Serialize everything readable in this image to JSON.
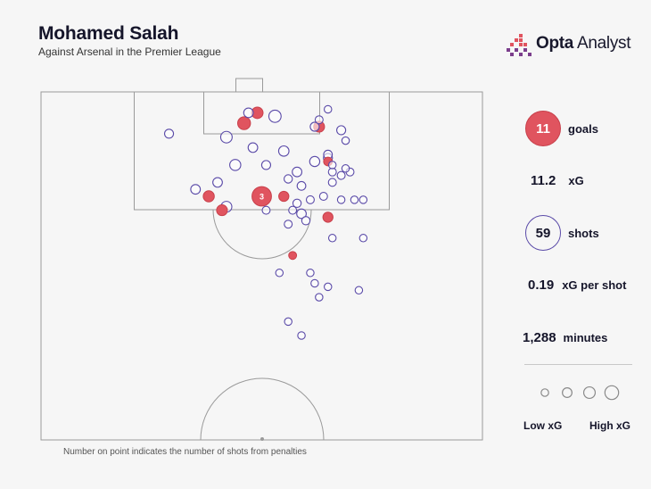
{
  "header": {
    "title": "Mohamed Salah",
    "subtitle": "Against Arsenal in the Premier League"
  },
  "brand": {
    "bold": "Opta",
    "light": " Analyst"
  },
  "stats": {
    "goals_value": "11",
    "goals_label": "goals",
    "xg_value": "11.2",
    "xg_label": "xG",
    "shots_value": "59",
    "shots_label": "shots",
    "xg_per_shot_value": "0.19",
    "xg_per_shot_label": "xG per shot",
    "minutes_value": "1,288",
    "minutes_label": "minutes"
  },
  "legend": {
    "low": "Low xG",
    "high": "High xG"
  },
  "footnote": "Number on point indicates the number of shots from penalties",
  "colors": {
    "goal_fill": "#e0545f",
    "shot_stroke": "#5a4aa8",
    "line": "#9a9a9a"
  },
  "chart_data": {
    "type": "scatter",
    "title": "Mohamed Salah",
    "subtitle": "Against Arsenal in the Premier League",
    "note": "Number on point indicates the number of shots from penalties",
    "size_encoding": "xG",
    "categories": [
      "goal",
      "shot"
    ],
    "penalty_label": "3",
    "points": [
      {
        "x": 46,
        "y": 9,
        "xg": 0.25,
        "goal": true
      },
      {
        "x": 49,
        "y": 6,
        "xg": 0.18,
        "goal": true
      },
      {
        "x": 53,
        "y": 7,
        "xg": 0.22,
        "goal": false
      },
      {
        "x": 47,
        "y": 6,
        "xg": 0.1,
        "goal": false
      },
      {
        "x": 63,
        "y": 10,
        "xg": 0.15,
        "goal": true
      },
      {
        "x": 42,
        "y": 13,
        "xg": 0.18,
        "goal": false
      },
      {
        "x": 29,
        "y": 12,
        "xg": 0.08,
        "goal": false
      },
      {
        "x": 48,
        "y": 16,
        "xg": 0.1,
        "goal": false
      },
      {
        "x": 55,
        "y": 17,
        "xg": 0.13,
        "goal": false
      },
      {
        "x": 44,
        "y": 21,
        "xg": 0.16,
        "goal": false
      },
      {
        "x": 51,
        "y": 21,
        "xg": 0.08,
        "goal": false
      },
      {
        "x": 62,
        "y": 10,
        "xg": 0.08,
        "goal": false
      },
      {
        "x": 58,
        "y": 23,
        "xg": 0.1,
        "goal": false
      },
      {
        "x": 40,
        "y": 26,
        "xg": 0.1,
        "goal": false
      },
      {
        "x": 35,
        "y": 28,
        "xg": 0.1,
        "goal": false
      },
      {
        "x": 38,
        "y": 30,
        "xg": 0.16,
        "goal": true
      },
      {
        "x": 50,
        "y": 30,
        "xg": 0.76,
        "goal": true,
        "penalty_count": 3
      },
      {
        "x": 55,
        "y": 30,
        "xg": 0.12,
        "goal": true
      },
      {
        "x": 42,
        "y": 33,
        "xg": 0.15,
        "goal": false
      },
      {
        "x": 41,
        "y": 34,
        "xg": 0.15,
        "goal": true
      },
      {
        "x": 62,
        "y": 20,
        "xg": 0.12,
        "goal": false
      },
      {
        "x": 68,
        "y": 11,
        "xg": 0.08,
        "goal": false
      },
      {
        "x": 63,
        "y": 8,
        "xg": 0.05,
        "goal": false
      },
      {
        "x": 65,
        "y": 5,
        "xg": 0.04,
        "goal": false
      },
      {
        "x": 69,
        "y": 14,
        "xg": 0.04,
        "goal": false
      },
      {
        "x": 65,
        "y": 18,
        "xg": 0.07,
        "goal": false
      },
      {
        "x": 65,
        "y": 19,
        "xg": 0.08,
        "goal": false
      },
      {
        "x": 65,
        "y": 20,
        "xg": 0.07,
        "goal": true
      },
      {
        "x": 66,
        "y": 21,
        "xg": 0.04,
        "goal": false
      },
      {
        "x": 66,
        "y": 23,
        "xg": 0.05,
        "goal": false
      },
      {
        "x": 68,
        "y": 24,
        "xg": 0.05,
        "goal": false
      },
      {
        "x": 70,
        "y": 23,
        "xg": 0.05,
        "goal": false
      },
      {
        "x": 69,
        "y": 22,
        "xg": 0.04,
        "goal": false
      },
      {
        "x": 66,
        "y": 26,
        "xg": 0.05,
        "goal": false
      },
      {
        "x": 59,
        "y": 27,
        "xg": 0.07,
        "goal": false
      },
      {
        "x": 61,
        "y": 31,
        "xg": 0.05,
        "goal": false
      },
      {
        "x": 64,
        "y": 30,
        "xg": 0.05,
        "goal": false
      },
      {
        "x": 68,
        "y": 31,
        "xg": 0.04,
        "goal": false
      },
      {
        "x": 71,
        "y": 31,
        "xg": 0.04,
        "goal": false
      },
      {
        "x": 73,
        "y": 31,
        "xg": 0.04,
        "goal": false
      },
      {
        "x": 58,
        "y": 32,
        "xg": 0.06,
        "goal": false
      },
      {
        "x": 57,
        "y": 34,
        "xg": 0.05,
        "goal": false
      },
      {
        "x": 59,
        "y": 35,
        "xg": 0.1,
        "goal": false
      },
      {
        "x": 60,
        "y": 37,
        "xg": 0.06,
        "goal": false
      },
      {
        "x": 65,
        "y": 36,
        "xg": 0.12,
        "goal": true
      },
      {
        "x": 56,
        "y": 38,
        "xg": 0.05,
        "goal": false
      },
      {
        "x": 66,
        "y": 42,
        "xg": 0.04,
        "goal": false
      },
      {
        "x": 73,
        "y": 42,
        "xg": 0.04,
        "goal": false
      },
      {
        "x": 57,
        "y": 47,
        "xg": 0.05,
        "goal": true
      },
      {
        "x": 54,
        "y": 52,
        "xg": 0.04,
        "goal": false
      },
      {
        "x": 61,
        "y": 52,
        "xg": 0.04,
        "goal": false
      },
      {
        "x": 62,
        "y": 55,
        "xg": 0.04,
        "goal": false
      },
      {
        "x": 65,
        "y": 56,
        "xg": 0.04,
        "goal": false
      },
      {
        "x": 72,
        "y": 57,
        "xg": 0.04,
        "goal": false
      },
      {
        "x": 63,
        "y": 59,
        "xg": 0.04,
        "goal": false
      },
      {
        "x": 56,
        "y": 66,
        "xg": 0.04,
        "goal": false
      },
      {
        "x": 59,
        "y": 70,
        "xg": 0.04,
        "goal": false
      },
      {
        "x": 51,
        "y": 34,
        "xg": 0.05,
        "goal": false
      },
      {
        "x": 56,
        "y": 25,
        "xg": 0.06,
        "goal": false
      }
    ],
    "legend_sizes": [
      0.04,
      0.1,
      0.18,
      0.3
    ]
  }
}
